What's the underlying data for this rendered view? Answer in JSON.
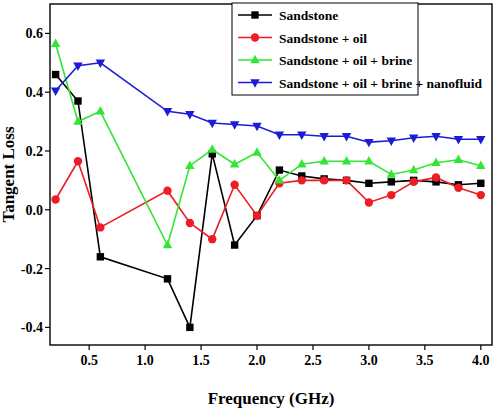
{
  "chart_data": {
    "type": "line",
    "x_label": "Frequency (GHz)",
    "y_label": "Tangent Loss",
    "x": [
      0.2,
      0.4,
      0.6,
      1.2,
      1.4,
      1.6,
      1.8,
      2.0,
      2.2,
      2.4,
      2.6,
      2.8,
      3.0,
      3.2,
      3.4,
      3.6,
      3.8,
      4.0
    ],
    "xlim": [
      0.15,
      4.1
    ],
    "xticks": [
      0.5,
      {
        "value": 1,
        "label": "1.0"
      },
      1.5,
      {
        "value": 2,
        "label": "2.0"
      },
      2.5,
      {
        "value": 3,
        "label": "3.0"
      },
      3.5,
      {
        "value": 4,
        "label": "4.0"
      }
    ],
    "ylim": [
      -0.46,
      0.7
    ],
    "yticks": [
      -0.4,
      -0.2,
      {
        "value": 0,
        "label": "0.0"
      },
      0.2,
      0.4,
      0.6
    ],
    "grid": false,
    "legend": "top",
    "series": [
      {
        "name": "Sandstone",
        "color": "#000000",
        "marker": "square",
        "values": [
          0.46,
          0.37,
          -0.16,
          -0.235,
          -0.4,
          0.19,
          -0.12,
          -0.02,
          0.135,
          0.115,
          0.105,
          0.1,
          0.09,
          0.095,
          0.1,
          0.095,
          0.085,
          0.09
        ]
      },
      {
        "name": "Sandstone + oil",
        "color": "#ee1c24",
        "marker": "circle",
        "values": [
          0.035,
          0.165,
          -0.06,
          0.065,
          -0.045,
          -0.1,
          0.085,
          -0.02,
          0.09,
          0.1,
          0.1,
          0.1,
          0.025,
          0.05,
          0.095,
          0.11,
          0.075,
          0.05
        ]
      },
      {
        "name": "Sandstone + oil + brine",
        "color": "#33e633",
        "marker": "triangle-up",
        "values": [
          0.565,
          0.3,
          0.335,
          -0.12,
          0.15,
          0.205,
          0.155,
          0.195,
          0.1,
          0.155,
          0.165,
          0.165,
          0.165,
          0.12,
          0.135,
          0.16,
          0.17,
          0.15
        ]
      },
      {
        "name": "Sandstone + oil + brine + nanofluid",
        "color": "#1c1cd6",
        "marker": "triangle-down",
        "values": [
          0.405,
          0.49,
          0.5,
          0.335,
          0.325,
          0.295,
          0.29,
          0.285,
          0.255,
          0.255,
          0.25,
          0.25,
          0.23,
          0.235,
          0.245,
          0.25,
          0.24,
          0.24
        ]
      }
    ]
  }
}
